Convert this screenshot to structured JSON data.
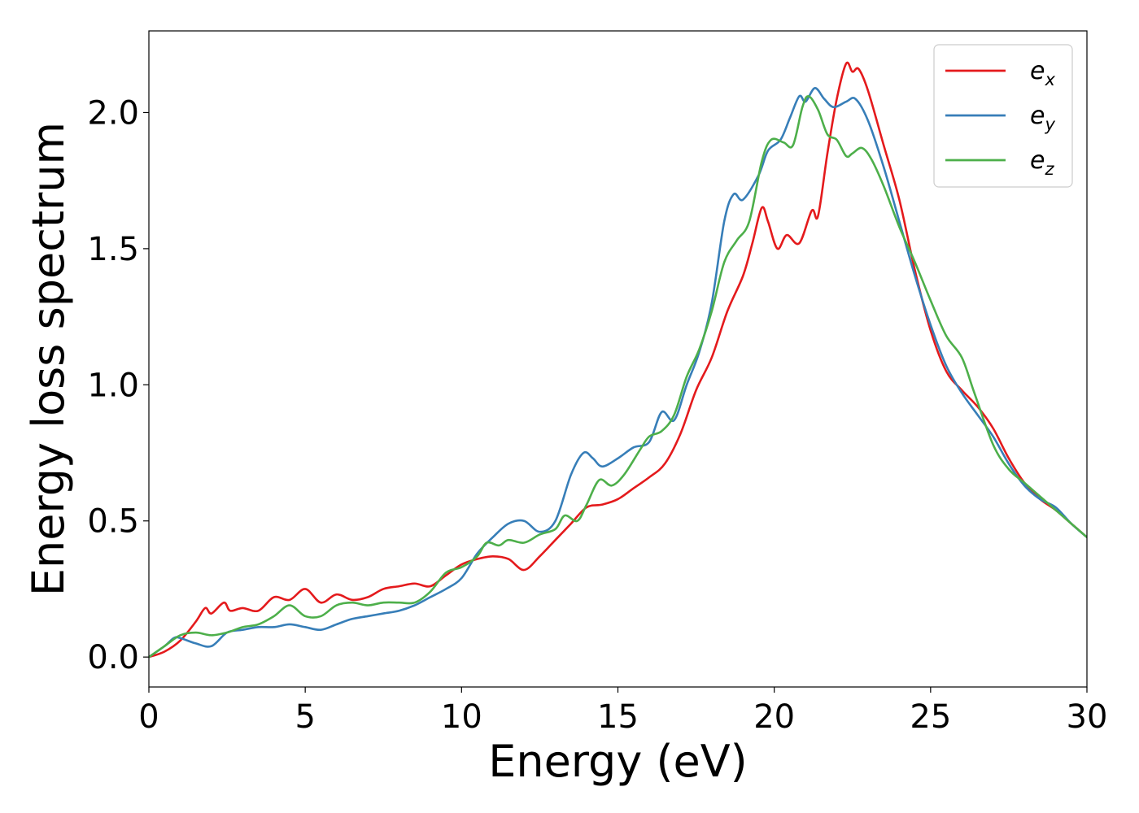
{
  "chart_data": {
    "type": "line",
    "title": "",
    "xlabel": "Energy (eV)",
    "ylabel": "Energy loss spectrum",
    "xlim": [
      0,
      30
    ],
    "ylim": [
      -0.11,
      2.3
    ],
    "x_ticks": [
      0,
      5,
      10,
      15,
      20,
      25,
      30
    ],
    "x_tick_labels": [
      "0",
      "5",
      "10",
      "15",
      "20",
      "25",
      "30"
    ],
    "y_ticks": [
      0.0,
      0.5,
      1.0,
      1.5,
      2.0
    ],
    "y_tick_labels": [
      "0.0",
      "0.5",
      "1.0",
      "1.5",
      "2.0"
    ],
    "grid": false,
    "legend_position": "top-right",
    "series": [
      {
        "name": "e_x",
        "label_main": "e",
        "label_sub": "x",
        "color": "#e41a1c",
        "points": [
          [
            0,
            0
          ],
          [
            0.5,
            0.02
          ],
          [
            1,
            0.06
          ],
          [
            1.5,
            0.13
          ],
          [
            1.8,
            0.18
          ],
          [
            2,
            0.16
          ],
          [
            2.4,
            0.2
          ],
          [
            2.6,
            0.17
          ],
          [
            3,
            0.18
          ],
          [
            3.5,
            0.17
          ],
          [
            4,
            0.22
          ],
          [
            4.5,
            0.21
          ],
          [
            5,
            0.25
          ],
          [
            5.5,
            0.2
          ],
          [
            6,
            0.23
          ],
          [
            6.5,
            0.21
          ],
          [
            7,
            0.22
          ],
          [
            7.5,
            0.25
          ],
          [
            8,
            0.26
          ],
          [
            8.5,
            0.27
          ],
          [
            9,
            0.26
          ],
          [
            9.5,
            0.3
          ],
          [
            10,
            0.34
          ],
          [
            10.5,
            0.36
          ],
          [
            11,
            0.37
          ],
          [
            11.5,
            0.36
          ],
          [
            12,
            0.32
          ],
          [
            12.5,
            0.37
          ],
          [
            13,
            0.43
          ],
          [
            13.5,
            0.49
          ],
          [
            14,
            0.55
          ],
          [
            14.5,
            0.56
          ],
          [
            15,
            0.58
          ],
          [
            15.5,
            0.62
          ],
          [
            16,
            0.66
          ],
          [
            16.5,
            0.71
          ],
          [
            17,
            0.82
          ],
          [
            17.5,
            0.98
          ],
          [
            18,
            1.1
          ],
          [
            18.5,
            1.27
          ],
          [
            19,
            1.4
          ],
          [
            19.3,
            1.52
          ],
          [
            19.6,
            1.65
          ],
          [
            19.8,
            1.6
          ],
          [
            20.1,
            1.5
          ],
          [
            20.4,
            1.55
          ],
          [
            20.8,
            1.52
          ],
          [
            21.2,
            1.64
          ],
          [
            21.4,
            1.62
          ],
          [
            21.7,
            1.85
          ],
          [
            22,
            2.05
          ],
          [
            22.3,
            2.18
          ],
          [
            22.5,
            2.15
          ],
          [
            22.7,
            2.16
          ],
          [
            23,
            2.08
          ],
          [
            23.5,
            1.88
          ],
          [
            24,
            1.68
          ],
          [
            24.5,
            1.42
          ],
          [
            25,
            1.2
          ],
          [
            25.5,
            1.05
          ],
          [
            26,
            0.98
          ],
          [
            26.5,
            0.92
          ],
          [
            27,
            0.84
          ],
          [
            27.5,
            0.73
          ],
          [
            28,
            0.64
          ],
          [
            28.5,
            0.58
          ],
          [
            29,
            0.54
          ],
          [
            29.5,
            0.49
          ],
          [
            30,
            0.44
          ]
        ]
      },
      {
        "name": "e_y",
        "label_main": "e",
        "label_sub": "y",
        "color": "#377eb8",
        "points": [
          [
            0,
            0
          ],
          [
            0.5,
            0.04
          ],
          [
            0.8,
            0.07
          ],
          [
            1,
            0.07
          ],
          [
            1.5,
            0.05
          ],
          [
            2,
            0.04
          ],
          [
            2.5,
            0.09
          ],
          [
            3,
            0.1
          ],
          [
            3.5,
            0.11
          ],
          [
            4,
            0.11
          ],
          [
            4.5,
            0.12
          ],
          [
            5,
            0.11
          ],
          [
            5.5,
            0.1
          ],
          [
            6,
            0.12
          ],
          [
            6.5,
            0.14
          ],
          [
            7,
            0.15
          ],
          [
            7.5,
            0.16
          ],
          [
            8,
            0.17
          ],
          [
            8.5,
            0.19
          ],
          [
            9,
            0.22
          ],
          [
            9.5,
            0.25
          ],
          [
            10,
            0.29
          ],
          [
            10.5,
            0.38
          ],
          [
            11,
            0.44
          ],
          [
            11.5,
            0.49
          ],
          [
            12,
            0.5
          ],
          [
            12.5,
            0.46
          ],
          [
            13,
            0.5
          ],
          [
            13.5,
            0.67
          ],
          [
            13.9,
            0.75
          ],
          [
            14.2,
            0.73
          ],
          [
            14.5,
            0.7
          ],
          [
            15,
            0.73
          ],
          [
            15.5,
            0.77
          ],
          [
            16,
            0.79
          ],
          [
            16.4,
            0.9
          ],
          [
            16.8,
            0.87
          ],
          [
            17.2,
            1.0
          ],
          [
            17.6,
            1.12
          ],
          [
            18,
            1.3
          ],
          [
            18.4,
            1.6
          ],
          [
            18.7,
            1.7
          ],
          [
            19,
            1.68
          ],
          [
            19.5,
            1.77
          ],
          [
            19.8,
            1.86
          ],
          [
            20.2,
            1.9
          ],
          [
            20.5,
            1.98
          ],
          [
            20.8,
            2.06
          ],
          [
            21,
            2.04
          ],
          [
            21.3,
            2.09
          ],
          [
            21.6,
            2.05
          ],
          [
            21.9,
            2.02
          ],
          [
            22.3,
            2.04
          ],
          [
            22.6,
            2.05
          ],
          [
            23,
            1.97
          ],
          [
            23.5,
            1.8
          ],
          [
            24,
            1.6
          ],
          [
            24.5,
            1.4
          ],
          [
            25,
            1.22
          ],
          [
            25.5,
            1.07
          ],
          [
            26,
            0.97
          ],
          [
            26.5,
            0.89
          ],
          [
            27,
            0.81
          ],
          [
            27.5,
            0.71
          ],
          [
            28,
            0.63
          ],
          [
            28.5,
            0.58
          ],
          [
            29,
            0.55
          ],
          [
            29.5,
            0.49
          ],
          [
            30,
            0.44
          ]
        ]
      },
      {
        "name": "e_z",
        "label_main": "e",
        "label_sub": "z",
        "color": "#4daf4a",
        "points": [
          [
            0,
            0
          ],
          [
            0.5,
            0.04
          ],
          [
            1,
            0.08
          ],
          [
            1.5,
            0.09
          ],
          [
            2,
            0.08
          ],
          [
            2.5,
            0.09
          ],
          [
            3,
            0.11
          ],
          [
            3.5,
            0.12
          ],
          [
            4,
            0.15
          ],
          [
            4.5,
            0.19
          ],
          [
            5,
            0.15
          ],
          [
            5.5,
            0.15
          ],
          [
            6,
            0.19
          ],
          [
            6.5,
            0.2
          ],
          [
            7,
            0.19
          ],
          [
            7.5,
            0.2
          ],
          [
            8,
            0.2
          ],
          [
            8.5,
            0.2
          ],
          [
            9,
            0.24
          ],
          [
            9.5,
            0.31
          ],
          [
            10,
            0.33
          ],
          [
            10.5,
            0.37
          ],
          [
            10.8,
            0.42
          ],
          [
            11.2,
            0.41
          ],
          [
            11.5,
            0.43
          ],
          [
            12,
            0.42
          ],
          [
            12.5,
            0.45
          ],
          [
            13,
            0.47
          ],
          [
            13.3,
            0.52
          ],
          [
            13.7,
            0.5
          ],
          [
            14,
            0.56
          ],
          [
            14.4,
            0.65
          ],
          [
            14.8,
            0.63
          ],
          [
            15.2,
            0.67
          ],
          [
            15.7,
            0.76
          ],
          [
            16,
            0.81
          ],
          [
            16.4,
            0.83
          ],
          [
            16.8,
            0.89
          ],
          [
            17.2,
            1.03
          ],
          [
            17.6,
            1.13
          ],
          [
            18,
            1.27
          ],
          [
            18.4,
            1.45
          ],
          [
            18.8,
            1.53
          ],
          [
            19.2,
            1.6
          ],
          [
            19.6,
            1.82
          ],
          [
            19.9,
            1.9
          ],
          [
            20.3,
            1.89
          ],
          [
            20.6,
            1.88
          ],
          [
            20.9,
            2.02
          ],
          [
            21.1,
            2.06
          ],
          [
            21.4,
            2.01
          ],
          [
            21.7,
            1.92
          ],
          [
            22,
            1.9
          ],
          [
            22.3,
            1.84
          ],
          [
            22.5,
            1.85
          ],
          [
            22.8,
            1.87
          ],
          [
            23.1,
            1.83
          ],
          [
            23.5,
            1.73
          ],
          [
            24,
            1.58
          ],
          [
            24.5,
            1.45
          ],
          [
            25,
            1.31
          ],
          [
            25.5,
            1.18
          ],
          [
            26,
            1.1
          ],
          [
            26.4,
            0.97
          ],
          [
            27,
            0.78
          ],
          [
            27.5,
            0.69
          ],
          [
            28,
            0.64
          ],
          [
            28.5,
            0.59
          ],
          [
            29,
            0.54
          ],
          [
            29.5,
            0.49
          ],
          [
            30,
            0.44
          ]
        ]
      }
    ]
  }
}
